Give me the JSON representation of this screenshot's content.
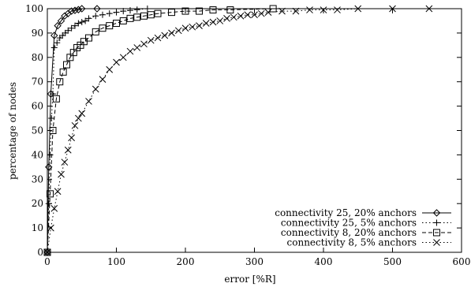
{
  "chart_data": {
    "type": "line",
    "title": "",
    "xlabel": "error [%R]",
    "ylabel": "percentage of nodes",
    "xlim": [
      0,
      600
    ],
    "ylim": [
      0,
      100
    ],
    "xticks": [
      0,
      100,
      200,
      300,
      400,
      500,
      600
    ],
    "yticks": [
      0,
      10,
      20,
      30,
      40,
      50,
      60,
      70,
      80,
      90,
      100
    ],
    "grid": false,
    "legend_position": "bottom-right",
    "series": [
      {
        "name": "connectivity 25, 20% anchors",
        "line": "solid",
        "marker": "diamond",
        "x": [
          0,
          2,
          5,
          10,
          15,
          20,
          25,
          30,
          35,
          40,
          45,
          50,
          72
        ],
        "y": [
          0,
          35,
          65,
          89,
          93,
          95,
          97,
          98,
          99,
          99.3,
          99.6,
          100,
          100
        ]
      },
      {
        "name": "connectivity 25,   5% anchors",
        "line": "dotted",
        "marker": "plus",
        "x": [
          0,
          2,
          4,
          6,
          8,
          10,
          14,
          18,
          22,
          26,
          30,
          35,
          40,
          45,
          50,
          55,
          60,
          70,
          80,
          90,
          100,
          110,
          120,
          130,
          145
        ],
        "y": [
          0,
          20,
          40,
          55,
          65,
          84,
          86,
          88,
          89,
          90,
          91,
          92,
          93,
          94,
          94.5,
          95,
          96,
          97,
          97.5,
          98,
          98.5,
          99,
          99.3,
          99.6,
          100
        ]
      },
      {
        "name": "connectivity   8, 20% anchors",
        "line": "dashed",
        "marker": "square",
        "x": [
          0,
          4,
          8,
          13,
          18,
          23,
          28,
          33,
          38,
          43,
          48,
          53,
          60,
          70,
          80,
          90,
          100,
          110,
          120,
          130,
          140,
          150,
          160,
          180,
          200,
          220,
          240,
          265,
          327
        ],
        "y": [
          0,
          24,
          50,
          63,
          70,
          74,
          77,
          80,
          82,
          84,
          85,
          86.5,
          88,
          90.5,
          92,
          93,
          94,
          95,
          96,
          96.5,
          97,
          97.5,
          98,
          98.5,
          99,
          99,
          99.5,
          99.5,
          100
        ]
      },
      {
        "name": "connectivity   8,   5% anchors",
        "line": "dotted",
        "marker": "cross",
        "x": [
          0,
          5,
          10,
          15,
          20,
          25,
          30,
          35,
          40,
          45,
          50,
          60,
          70,
          80,
          90,
          100,
          110,
          120,
          130,
          140,
          150,
          160,
          170,
          180,
          190,
          200,
          210,
          220,
          230,
          240,
          250,
          260,
          270,
          280,
          290,
          300,
          310,
          320,
          340,
          360,
          380,
          400,
          420,
          450,
          500,
          553
        ],
        "y": [
          0,
          10,
          18,
          25,
          32,
          37,
          42,
          47,
          52,
          55,
          57,
          62,
          67,
          71,
          75,
          78,
          80,
          82.5,
          84,
          85.5,
          87,
          88,
          89,
          90,
          91,
          92,
          92.5,
          93,
          94,
          94.5,
          95,
          96,
          96.5,
          97,
          97.5,
          97.5,
          98,
          98.5,
          99,
          99,
          99.5,
          99.5,
          99.5,
          100,
          100,
          100
        ]
      }
    ]
  }
}
